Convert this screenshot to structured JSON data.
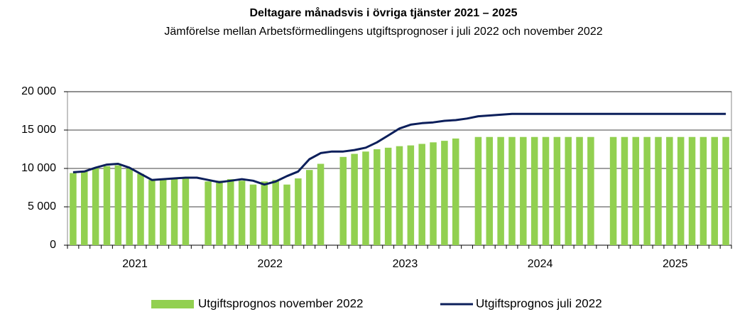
{
  "chart_data": {
    "type": "bar_line",
    "title": "Deltagare månadsvis i övriga tjänster 2021 – 2025",
    "subtitle": "Jämförelse mellan Arbetsförmedlingens utgiftsprognoser i juli 2022 och november 2022",
    "categories": [
      null,
      null,
      null,
      null,
      null,
      null,
      null,
      null,
      null,
      null,
      null,
      null,
      null,
      null,
      null,
      null,
      null,
      null,
      null,
      null,
      null,
      null,
      null,
      null,
      null,
      null,
      null,
      null,
      null,
      null,
      null,
      null,
      null,
      null,
      null,
      null,
      null,
      null,
      null,
      null,
      null,
      null,
      null,
      null,
      null,
      null,
      null,
      null,
      null,
      null,
      null,
      null,
      null,
      null,
      null,
      null,
      null,
      null,
      null
    ],
    "year_labels": [
      "2021",
      "2022",
      "2023",
      "2024",
      "2025"
    ],
    "ylim": [
      0,
      20000
    ],
    "yticks": [
      0,
      {
        "value": 5000,
        "label": "5 000"
      },
      {
        "value": 10000,
        "label": "10 000"
      },
      {
        "value": 15000,
        "label": "15 000"
      },
      {
        "value": 20000,
        "label": "20 000"
      }
    ],
    "grid": true,
    "legend": "bottom",
    "series": [
      {
        "name": "Utgiftsprognos november 2022",
        "type": "bar",
        "color": "#92d050",
        "values": [
          9400,
          9600,
          10100,
          10300,
          10400,
          10000,
          9300,
          8500,
          8600,
          8700,
          8800,
          null,
          8300,
          8400,
          8600,
          8400,
          7900,
          8300,
          8500,
          7900,
          8700,
          9800,
          10600,
          null,
          11500,
          11900,
          12200,
          12500,
          12700,
          12900,
          13000,
          13200,
          13400,
          13600,
          13900,
          null,
          14100,
          14100,
          14100,
          14100,
          14100,
          14100,
          14100,
          14100,
          14100,
          14100,
          14100,
          null,
          14100,
          14100,
          14100,
          14100,
          14100,
          14100,
          14100,
          14100,
          14100,
          14100,
          14100
        ]
      },
      {
        "name": "Utgiftsprognos juli 2022",
        "type": "line",
        "color": "#0c1f5b",
        "values": [
          9500,
          9600,
          10100,
          10500,
          10600,
          10100,
          9300,
          8500,
          8600,
          8700,
          8800,
          8800,
          8500,
          8200,
          8400,
          8600,
          8400,
          7900,
          8300,
          9000,
          9600,
          11200,
          12000,
          12200,
          12200,
          12400,
          12700,
          13400,
          14300,
          15200,
          15700,
          15900,
          16000,
          16200,
          16300,
          16500,
          16800,
          16900,
          17000,
          17100,
          17100,
          17100,
          17100,
          17100,
          17100,
          17100,
          17100,
          17100,
          17100,
          17100,
          17100,
          17100,
          17100,
          17100,
          17100,
          17100,
          17100,
          17100,
          17100
        ]
      }
    ]
  }
}
